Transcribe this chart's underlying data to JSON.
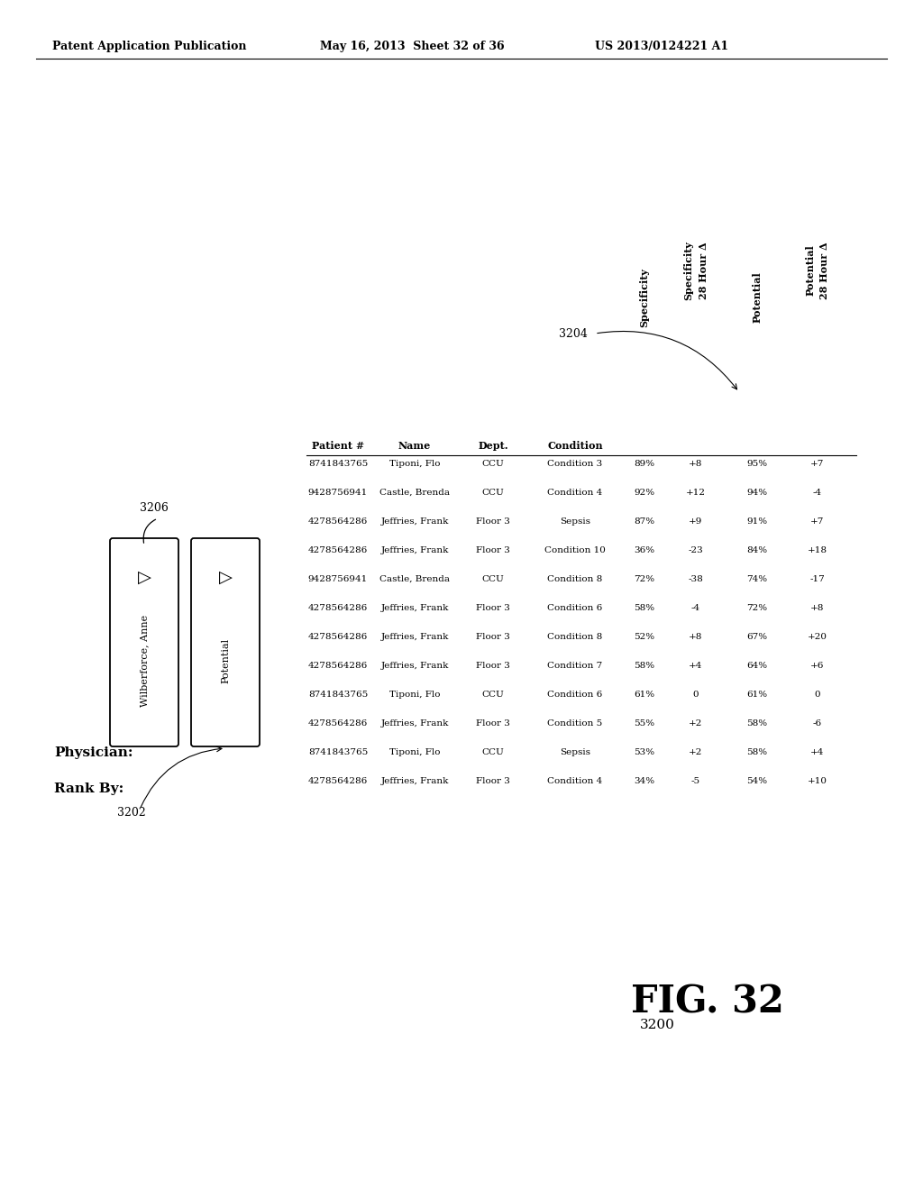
{
  "header_line1": "Patent Application Publication",
  "header_line2": "May 16, 2013  Sheet 32 of 36",
  "header_line3": "US 2013/0124221 A1",
  "fig_number": "FIG. 32",
  "fig_ref": "3200",
  "physician_label": "Physician:",
  "physician_name": "Wilberforce, Anne",
  "rank_by_label": "Rank By:",
  "rank_option1": "Wilberforce, Anne",
  "rank_option2": "Potential",
  "label_3206": "3206",
  "label_3202": "3202",
  "label_3204": "3204",
  "rows": [
    [
      "8741843765",
      "Tiponi, Flo",
      "CCU",
      "Condition 3",
      "89%",
      "+8",
      "95%",
      "+7"
    ],
    [
      "9428756941",
      "Castle, Brenda",
      "CCU",
      "Condition 4",
      "92%",
      "+12",
      "94%",
      "-4"
    ],
    [
      "4278564286",
      "Jeffries, Frank",
      "Floor 3",
      "Sepsis",
      "87%",
      "+9",
      "91%",
      "+7"
    ],
    [
      "4278564286",
      "Jeffries, Frank",
      "Floor 3",
      "Condition 10",
      "36%",
      "-23",
      "84%",
      "+18"
    ],
    [
      "9428756941",
      "Castle, Brenda",
      "CCU",
      "Condition 8",
      "72%",
      "-38",
      "74%",
      "-17"
    ],
    [
      "4278564286",
      "Jeffries, Frank",
      "Floor 3",
      "Condition 6",
      "58%",
      "-4",
      "72%",
      "+8"
    ],
    [
      "4278564286",
      "Jeffries, Frank",
      "Floor 3",
      "Condition 8",
      "52%",
      "+8",
      "67%",
      "+20"
    ],
    [
      "4278564286",
      "Jeffries, Frank",
      "Floor 3",
      "Condition 7",
      "58%",
      "+4",
      "64%",
      "+6"
    ],
    [
      "8741843765",
      "Tiponi, Flo",
      "CCU",
      "Condition 6",
      "61%",
      "0",
      "61%",
      "0"
    ],
    [
      "4278564286",
      "Jeffries, Frank",
      "Floor 3",
      "Condition 5",
      "55%",
      "+2",
      "58%",
      "-6"
    ],
    [
      "8741843765",
      "Tiponi, Flo",
      "CCU",
      "Sepsis",
      "53%",
      "+2",
      "58%",
      "+4"
    ],
    [
      "4278564286",
      "Jeffries, Frank",
      "Floor 3",
      "Condition 4",
      "34%",
      "-5",
      "54%",
      "+10"
    ]
  ],
  "bg_color": "#ffffff",
  "text_color": "#000000"
}
